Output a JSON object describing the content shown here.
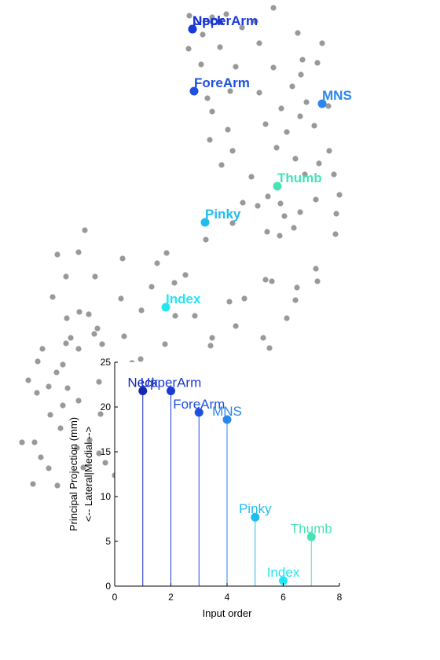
{
  "chart_data": [
    {
      "type": "scatter",
      "title": "",
      "axes_visible": false,
      "background_point_color": "#999999",
      "background_points": [
        [
          241,
          20
        ],
        [
          270,
          22
        ],
        [
          288,
          18
        ],
        [
          325,
          27
        ],
        [
          348,
          10
        ],
        [
          308,
          35
        ],
        [
          258,
          44
        ],
        [
          379,
          42
        ],
        [
          410,
          55
        ],
        [
          240,
          62
        ],
        [
          280,
          60
        ],
        [
          330,
          55
        ],
        [
          385,
          76
        ],
        [
          404,
          80
        ],
        [
          256,
          82
        ],
        [
          300,
          85
        ],
        [
          348,
          86
        ],
        [
          383,
          95
        ],
        [
          372,
          110
        ],
        [
          264,
          125
        ],
        [
          293,
          116
        ],
        [
          330,
          118
        ],
        [
          390,
          130
        ],
        [
          358,
          138
        ],
        [
          338,
          158
        ],
        [
          382,
          148
        ],
        [
          418,
          135
        ],
        [
          270,
          142
        ],
        [
          290,
          165
        ],
        [
          400,
          160
        ],
        [
          365,
          168
        ],
        [
          267,
          178
        ],
        [
          296,
          192
        ],
        [
          352,
          188
        ],
        [
          419,
          192
        ],
        [
          376,
          202
        ],
        [
          388,
          222
        ],
        [
          406,
          208
        ],
        [
          425,
          222
        ],
        [
          282,
          210
        ],
        [
          432,
          248
        ],
        [
          341,
          250
        ],
        [
          357,
          259
        ],
        [
          402,
          254
        ],
        [
          320,
          225
        ],
        [
          309,
          258
        ],
        [
          328,
          262
        ],
        [
          428,
          272
        ],
        [
          382,
          270
        ],
        [
          362,
          275
        ],
        [
          296,
          284
        ],
        [
          374,
          290
        ],
        [
          340,
          295
        ],
        [
          427,
          298
        ],
        [
          356,
          300
        ],
        [
          108,
          293
        ],
        [
          73,
          324
        ],
        [
          100,
          321
        ],
        [
          262,
          305
        ],
        [
          156,
          329
        ],
        [
          200,
          335
        ],
        [
          212,
          322
        ],
        [
          236,
          350
        ],
        [
          222,
          360
        ],
        [
          402,
          342
        ],
        [
          84,
          352
        ],
        [
          121,
          352
        ],
        [
          404,
          358
        ],
        [
          338,
          356
        ],
        [
          346,
          358
        ],
        [
          378,
          366
        ],
        [
          193,
          365
        ],
        [
          67,
          378
        ],
        [
          154,
          380
        ],
        [
          311,
          380
        ],
        [
          376,
          382
        ],
        [
          292,
          384
        ],
        [
          101,
          397
        ],
        [
          85,
          405
        ],
        [
          113,
          400
        ],
        [
          180,
          395
        ],
        [
          223,
          402
        ],
        [
          248,
          402
        ],
        [
          365,
          405
        ],
        [
          300,
          415
        ],
        [
          124,
          418
        ],
        [
          90,
          430
        ],
        [
          84,
          437
        ],
        [
          120,
          425
        ],
        [
          158,
          428
        ],
        [
          210,
          438
        ],
        [
          270,
          430
        ],
        [
          335,
          430
        ],
        [
          54,
          444
        ],
        [
          100,
          444
        ],
        [
          130,
          438
        ],
        [
          268,
          440
        ],
        [
          343,
          443
        ],
        [
          179,
          457
        ],
        [
          48,
          460
        ],
        [
          80,
          464
        ],
        [
          168,
          462
        ],
        [
          270,
          466
        ],
        [
          36,
          484
        ],
        [
          72,
          474
        ],
        [
          62,
          492
        ],
        [
          126,
          486
        ],
        [
          86,
          494
        ],
        [
          47,
          500
        ],
        [
          80,
          516
        ],
        [
          100,
          510
        ],
        [
          64,
          528
        ],
        [
          128,
          527
        ],
        [
          77,
          545
        ],
        [
          28,
          563
        ],
        [
          44,
          563
        ],
        [
          114,
          560
        ],
        [
          52,
          582
        ],
        [
          98,
          570
        ],
        [
          126,
          577
        ],
        [
          62,
          596
        ],
        [
          106,
          595
        ],
        [
          134,
          589
        ],
        [
          42,
          616
        ],
        [
          73,
          618
        ],
        [
          146,
          605
        ],
        [
          153,
          618
        ]
      ],
      "labeled_points": [
        {
          "label": "Neck",
          "color": "#1428b4",
          "x": 245,
          "y": 37
        },
        {
          "label": "UpperArm",
          "color": "#1a3ad8",
          "x": 245,
          "y": 37
        },
        {
          "label": "ForeArm",
          "color": "#1e50e0",
          "x": 247,
          "y": 116
        },
        {
          "label": "MNS",
          "color": "#2a86ee",
          "x": 410,
          "y": 132
        },
        {
          "label": "Thumb",
          "color": "#48e2b8",
          "x": 353,
          "y": 237
        },
        {
          "label": "Pinky",
          "color": "#20bcee",
          "x": 261,
          "y": 283
        },
        {
          "label": "Index",
          "color": "#24e4f2",
          "x": 211,
          "y": 391
        }
      ]
    },
    {
      "type": "stem",
      "title": "",
      "xlabel": "Input order",
      "ylabel_line1": "Principal Projection (mm)",
      "ylabel_line2": "<-- Lateral|Medial -->",
      "xlim": [
        0,
        8
      ],
      "ylim": [
        0,
        25
      ],
      "xticks": [
        "0",
        "2",
        "4",
        "6",
        "8"
      ],
      "yticks": [
        "0",
        "5",
        "10",
        "15",
        "20",
        "25"
      ],
      "grid": false,
      "legend": "none",
      "points": [
        {
          "label": "Neck",
          "x": 1,
          "y": 21.8,
          "color": "#1428b4"
        },
        {
          "label": "UpperArm",
          "x": 2,
          "y": 21.8,
          "color": "#1a3ad8"
        },
        {
          "label": "ForeArm",
          "x": 3,
          "y": 19.4,
          "color": "#1e50e0"
        },
        {
          "label": "MNS",
          "x": 4,
          "y": 18.6,
          "color": "#2a86ee"
        },
        {
          "label": "Pinky",
          "x": 5,
          "y": 7.7,
          "color": "#20bcee"
        },
        {
          "label": "Index",
          "x": 6,
          "y": 0.6,
          "color": "#24e4f2"
        },
        {
          "label": "Thumb",
          "x": 7,
          "y": 5.5,
          "color": "#48e2b8"
        }
      ]
    }
  ]
}
